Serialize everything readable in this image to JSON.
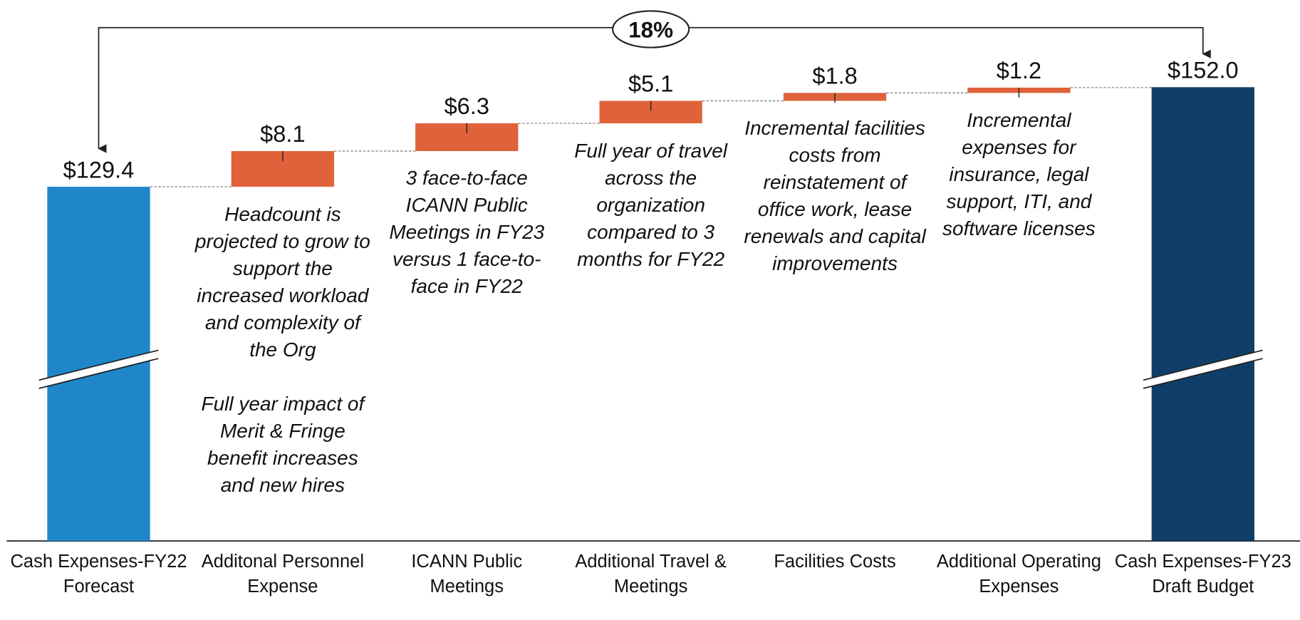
{
  "chart_data": {
    "type": "waterfall",
    "categories": [
      "Cash Expenses-FY22 Forecast",
      "Additonal Personnel Expense",
      "ICANN Public Meetings",
      "Additional Travel & Meetings",
      "Facilities Costs",
      "Additional Operating Expenses",
      "Cash Expenses-FY23 Draft Budget"
    ],
    "values": [
      129.4,
      8.1,
      6.3,
      5.1,
      1.8,
      1.2,
      152.0
    ],
    "value_labels": [
      "$129.4",
      "$8.1",
      "$6.3",
      "$5.1",
      "$1.8",
      "$1.2",
      "$152.0"
    ],
    "measure": [
      "absolute",
      "relative",
      "relative",
      "relative",
      "relative",
      "relative",
      "absolute"
    ],
    "colors": [
      "#1f87c9",
      "#e0623a",
      "#e0623a",
      "#e0623a",
      "#e0623a",
      "#e0623a",
      "#0f3f68"
    ],
    "notes": [
      [],
      [
        "Headcount is projected to grow to support the increased workload and complexity of the Org",
        "Full year impact of Merit & Fringe benefit increases and new hires"
      ],
      [
        "3 face-to-face ICANN Public Meetings in FY23 versus 1 face-to-face in FY22"
      ],
      [
        "Full year of travel across the organization compared to 3 months for FY22"
      ],
      [
        "Incremental facilities costs from reinstatement of office work, lease renewals and capital improvements"
      ],
      [
        "Incremental expenses for insurance, legal support, ITI, and software licenses"
      ],
      []
    ],
    "growth_label": "18%",
    "ylim": [
      49,
      158
    ],
    "axis_break": true
  }
}
